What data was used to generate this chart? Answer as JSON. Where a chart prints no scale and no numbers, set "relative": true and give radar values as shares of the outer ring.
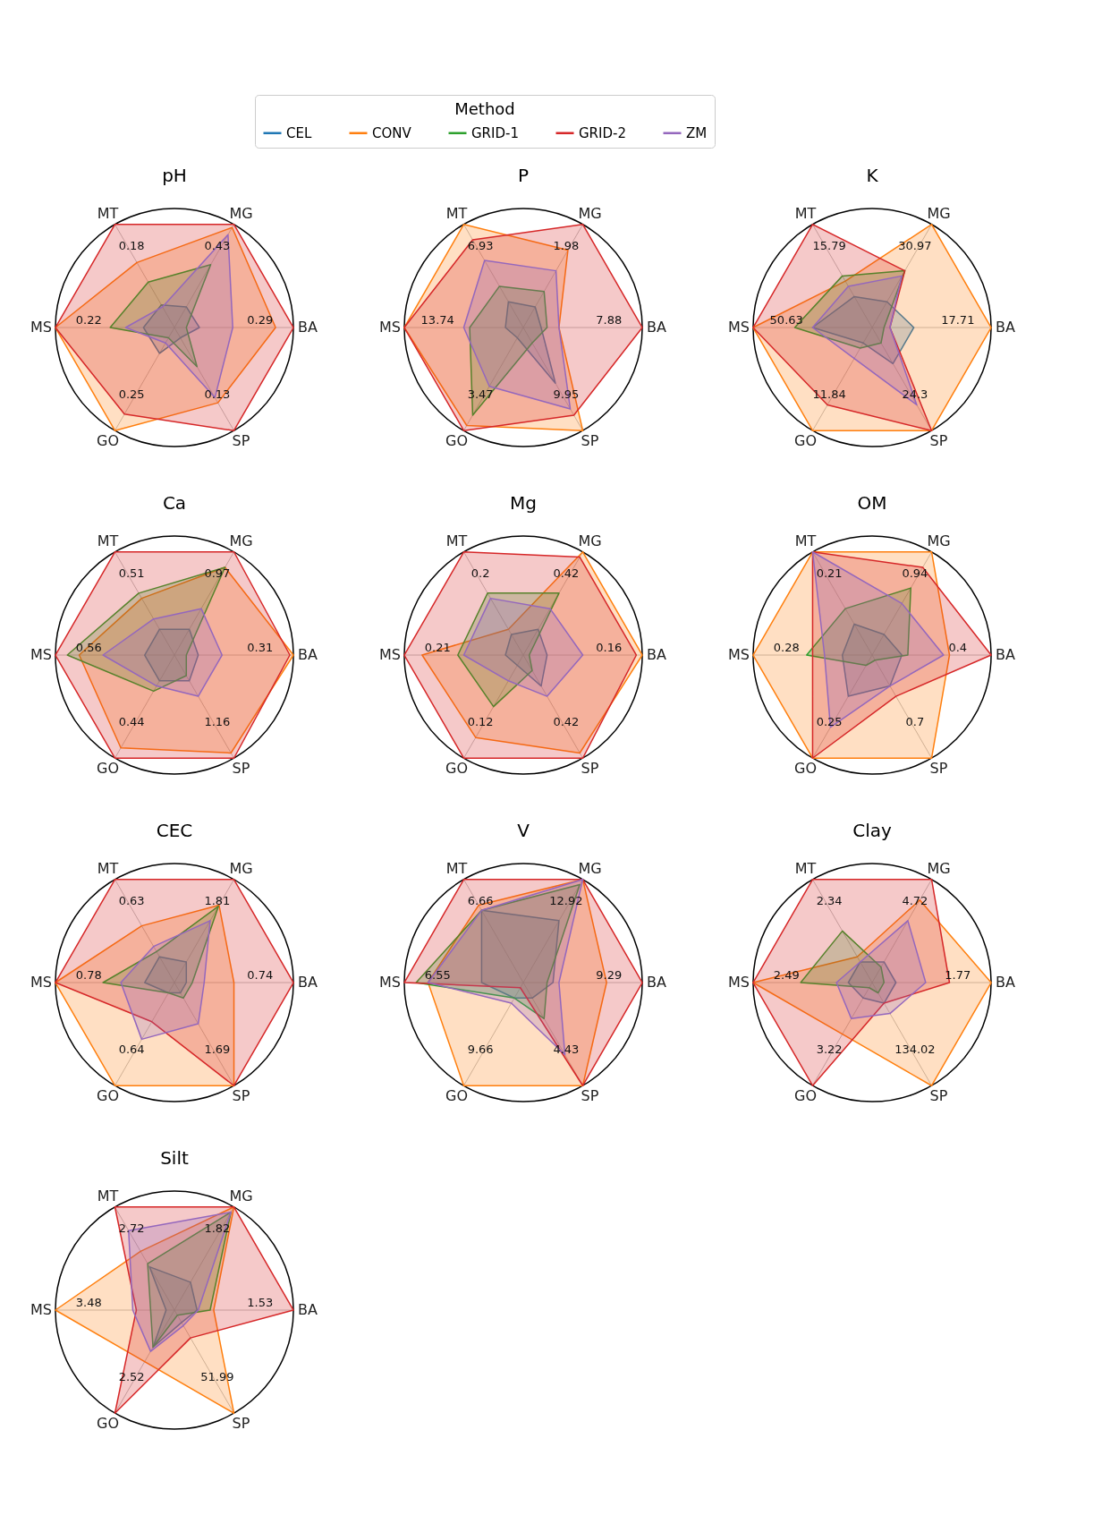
{
  "chart_data": [
    {
      "type": "radar",
      "title": "pH",
      "relative": true,
      "grid": true,
      "legend": "top",
      "legend_title": "Method",
      "categories": [
        "MG",
        "BA",
        "SP",
        "GO",
        "MS",
        "MT"
      ],
      "annotations": [
        "0.43",
        "0.29",
        "0.13",
        "0.25",
        "0.22",
        "0.18"
      ],
      "series": [
        {
          "name": "CEL",
          "color": "#1f77b4",
          "values": [
            0.2,
            0.21,
            0.1,
            0.25,
            0.26,
            0.22
          ]
        },
        {
          "name": "CONV",
          "color": "#ff7f0e",
          "values": [
            0.97,
            0.85,
            0.73,
            1,
            1,
            0.63
          ]
        },
        {
          "name": "GRID-1",
          "color": "#2ca02c",
          "values": [
            0.61,
            0.1,
            0.38,
            0.1,
            0.54,
            0.44
          ]
        },
        {
          "name": "GRID-2",
          "color": "#d62728",
          "values": [
            1,
            1,
            1,
            0.84,
            1,
            1
          ]
        },
        {
          "name": "ZM",
          "color": "#9467bd",
          "values": [
            0.9,
            0.49,
            0.68,
            0.15,
            0.41,
            0.2
          ]
        }
      ]
    },
    {
      "type": "radar",
      "title": "P",
      "relative": true,
      "grid": true,
      "categories": [
        "MG",
        "BA",
        "SP",
        "GO",
        "MS",
        "MT"
      ],
      "annotations": [
        "1.98",
        "7.88",
        "9.95",
        "3.47",
        "13.74",
        "6.93"
      ],
      "series": [
        {
          "name": "CEL",
          "color": "#1f77b4",
          "values": [
            0.2,
            0.15,
            0.54,
            0.1,
            0.15,
            0.25
          ]
        },
        {
          "name": "CONV",
          "color": "#ff7f0e",
          "values": [
            0.75,
            0.3,
            1,
            0.95,
            1,
            1
          ]
        },
        {
          "name": "GRID-1",
          "color": "#2ca02c",
          "values": [
            0.35,
            0.2,
            0.15,
            0.85,
            0.45,
            0.4
          ]
        },
        {
          "name": "GRID-2",
          "color": "#d62728",
          "values": [
            1,
            1,
            0.85,
            1,
            1,
            0.85
          ]
        },
        {
          "name": "ZM",
          "color": "#9467bd",
          "values": [
            0.55,
            0.3,
            0.79,
            0.57,
            0.5,
            0.65
          ]
        }
      ]
    },
    {
      "type": "radar",
      "title": "K",
      "relative": true,
      "grid": true,
      "categories": [
        "MG",
        "BA",
        "SP",
        "GO",
        "MS",
        "MT"
      ],
      "annotations": [
        "30.97",
        "17.71",
        "24.3",
        "11.84",
        "50.63",
        "15.79"
      ],
      "series": [
        {
          "name": "CEL",
          "color": "#1f77b4",
          "values": [
            0.25,
            0.35,
            0.35,
            0.15,
            0.5,
            0.3
          ]
        },
        {
          "name": "CONV",
          "color": "#ff7f0e",
          "values": [
            1,
            1,
            1,
            1,
            1,
            0.45
          ]
        },
        {
          "name": "GRID-1",
          "color": "#2ca02c",
          "values": [
            0.55,
            0.1,
            0.15,
            0.2,
            0.65,
            0.5
          ]
        },
        {
          "name": "GRID-2",
          "color": "#d62728",
          "values": [
            0.55,
            0.15,
            1,
            0.75,
            1,
            1
          ]
        },
        {
          "name": "ZM",
          "color": "#9467bd",
          "values": [
            0.5,
            0.15,
            0.75,
            0.3,
            0.5,
            0.4
          ]
        }
      ]
    },
    {
      "type": "radar",
      "title": "Ca",
      "relative": true,
      "grid": true,
      "categories": [
        "MG",
        "BA",
        "SP",
        "GO",
        "MS",
        "MT"
      ],
      "annotations": [
        "0.97",
        "0.31",
        "1.16",
        "0.44",
        "0.56",
        "0.51"
      ],
      "series": [
        {
          "name": "CEL",
          "color": "#1f77b4",
          "values": [
            0.25,
            0.2,
            0.25,
            0.25,
            0.25,
            0.25
          ]
        },
        {
          "name": "CONV",
          "color": "#ff7f0e",
          "values": [
            0.85,
            1,
            0.95,
            0.9,
            0.8,
            0.55
          ]
        },
        {
          "name": "GRID-1",
          "color": "#2ca02c",
          "values": [
            0.85,
            0.1,
            0.2,
            0.35,
            0.9,
            0.6
          ]
        },
        {
          "name": "GRID-2",
          "color": "#d62728",
          "values": [
            1,
            0.97,
            1,
            1,
            1,
            1
          ]
        },
        {
          "name": "ZM",
          "color": "#9467bd",
          "values": [
            0.45,
            0.4,
            0.4,
            0.3,
            0.6,
            0.35
          ]
        }
      ]
    },
    {
      "type": "radar",
      "title": "Mg",
      "relative": true,
      "grid": true,
      "categories": [
        "MG",
        "BA",
        "SP",
        "GO",
        "MS",
        "MT"
      ],
      "annotations": [
        "0.42",
        "0.16",
        "0.42",
        "0.12",
        "0.21",
        "0.2"
      ],
      "series": [
        {
          "name": "CEL",
          "color": "#1f77b4",
          "values": [
            0.25,
            0.2,
            0.3,
            0.1,
            0.15,
            0.2
          ]
        },
        {
          "name": "CONV",
          "color": "#ff7f0e",
          "values": [
            1,
            1,
            0.95,
            0.8,
            0.85,
            0.25
          ]
        },
        {
          "name": "GRID-1",
          "color": "#2ca02c",
          "values": [
            0.6,
            0.05,
            0.15,
            0.5,
            0.55,
            0.6
          ]
        },
        {
          "name": "GRID-2",
          "color": "#d62728",
          "values": [
            0.95,
            0.95,
            1,
            1,
            1,
            1
          ]
        },
        {
          "name": "ZM",
          "color": "#9467bd",
          "values": [
            0.45,
            0.5,
            0.4,
            0.25,
            0.5,
            0.55
          ]
        }
      ]
    },
    {
      "type": "radar",
      "title": "OM",
      "relative": true,
      "grid": true,
      "categories": [
        "MG",
        "BA",
        "SP",
        "GO",
        "MS",
        "MT"
      ],
      "annotations": [
        "0.94",
        "0.4",
        "0.7",
        "0.25",
        "0.28",
        "0.21"
      ],
      "series": [
        {
          "name": "CEL",
          "color": "#1f77b4",
          "values": [
            0.2,
            0.25,
            0.3,
            0.4,
            0.25,
            0.3
          ]
        },
        {
          "name": "CONV",
          "color": "#ff7f0e",
          "values": [
            1,
            0.65,
            1,
            1,
            1,
            1
          ]
        },
        {
          "name": "GRID-1",
          "color": "#2ca02c",
          "values": [
            0.65,
            0.3,
            0.05,
            0.1,
            0.55,
            0.45
          ]
        },
        {
          "name": "GRID-2",
          "color": "#d62728",
          "values": [
            0.85,
            1,
            0.4,
            1,
            0.5,
            1
          ]
        },
        {
          "name": "ZM",
          "color": "#9467bd",
          "values": [
            0.5,
            0.6,
            0.3,
            0.7,
            0.4,
            1
          ]
        }
      ]
    },
    {
      "type": "radar",
      "title": "CEC",
      "relative": true,
      "grid": true,
      "categories": [
        "MG",
        "BA",
        "SP",
        "GO",
        "MS",
        "MT"
      ],
      "annotations": [
        "1.81",
        "0.74",
        "1.69",
        "0.64",
        "0.78",
        "0.63"
      ],
      "series": [
        {
          "name": "CEL",
          "color": "#1f77b4",
          "values": [
            0.2,
            0.1,
            0.1,
            0.1,
            0.25,
            0.25
          ]
        },
        {
          "name": "CONV",
          "color": "#ff7f0e",
          "values": [
            0.75,
            0.5,
            1,
            1,
            1,
            0.55
          ]
        },
        {
          "name": "GRID-1",
          "color": "#2ca02c",
          "values": [
            0.74,
            0.15,
            0.15,
            0.1,
            0.6,
            0.3
          ]
        },
        {
          "name": "GRID-2",
          "color": "#d62728",
          "values": [
            1,
            1,
            1,
            0.38,
            1,
            1
          ]
        },
        {
          "name": "ZM",
          "color": "#9467bd",
          "values": [
            0.6,
            0.25,
            0.4,
            0.55,
            0.45,
            0.35
          ]
        }
      ]
    },
    {
      "type": "radar",
      "title": "V",
      "relative": true,
      "grid": true,
      "categories": [
        "MG",
        "BA",
        "SP",
        "GO",
        "MS",
        "MT"
      ],
      "annotations": [
        "12.92",
        "9.29",
        "4.43",
        "9.66",
        "6.55",
        "6.66"
      ],
      "series": [
        {
          "name": "CEL",
          "color": "#1f77b4",
          "values": [
            0.6,
            0.25,
            0.15,
            0.15,
            0.35,
            0.7
          ]
        },
        {
          "name": "CONV",
          "color": "#ff7f0e",
          "values": [
            1,
            0.7,
            1,
            1,
            0.8,
            0.75
          ]
        },
        {
          "name": "GRID-1",
          "color": "#2ca02c",
          "values": [
            0.95,
            0.2,
            0.35,
            0.15,
            0.9,
            0.7
          ]
        },
        {
          "name": "GRID-2",
          "color": "#d62728",
          "values": [
            1,
            1,
            1,
            0.05,
            1,
            1
          ]
        },
        {
          "name": "ZM",
          "color": "#9467bd",
          "values": [
            1,
            0.3,
            0.7,
            0.2,
            0.8,
            0.7
          ]
        }
      ]
    },
    {
      "type": "radar",
      "title": "Clay",
      "relative": true,
      "grid": true,
      "categories": [
        "MG",
        "BA",
        "SP",
        "GO",
        "MS",
        "MT"
      ],
      "annotations": [
        "4.72",
        "1.77",
        "134.02",
        "3.22",
        "2.49",
        "2.34"
      ],
      "series": [
        {
          "name": "CEL",
          "color": "#1f77b4",
          "values": [
            0.2,
            0.2,
            0.2,
            0.15,
            0.2,
            0.2
          ]
        },
        {
          "name": "CONV",
          "color": "#ff7f0e",
          "values": [
            0.8,
            1,
            1,
            0.5,
            1,
            0.25
          ]
        },
        {
          "name": "GRID-1",
          "color": "#2ca02c",
          "values": [
            0.15,
            0.1,
            0.1,
            0.05,
            0.6,
            0.5
          ]
        },
        {
          "name": "GRID-2",
          "color": "#d62728",
          "values": [
            1,
            0.65,
            0.2,
            1,
            1,
            1
          ]
        },
        {
          "name": "ZM",
          "color": "#9467bd",
          "values": [
            0.6,
            0.45,
            0.3,
            0.35,
            0.3,
            0.2
          ]
        }
      ]
    },
    {
      "type": "radar",
      "title": "Silt",
      "relative": true,
      "grid": true,
      "categories": [
        "MG",
        "BA",
        "SP",
        "GO",
        "MS",
        "MT"
      ],
      "annotations": [
        "1.82",
        "1.53",
        "51.99",
        "2.52",
        "3.48",
        "2.72"
      ],
      "series": [
        {
          "name": "CEL",
          "color": "#1f77b4",
          "values": [
            0.27,
            0.19,
            0.12,
            0.36,
            0.07,
            0.42
          ]
        },
        {
          "name": "CONV",
          "color": "#ff7f0e",
          "values": [
            1,
            0.33,
            1,
            0.5,
            1,
            0.57
          ]
        },
        {
          "name": "GRID-1",
          "color": "#2ca02c",
          "values": [
            0.95,
            0.3,
            0.05,
            0.36,
            0.2,
            0.45
          ]
        },
        {
          "name": "GRID-2",
          "color": "#d62728",
          "values": [
            1,
            1,
            0.27,
            1,
            0.32,
            1
          ]
        },
        {
          "name": "ZM",
          "color": "#9467bd",
          "values": [
            0.95,
            0.2,
            0.15,
            0.4,
            0.35,
            0.77
          ]
        }
      ]
    }
  ]
}
